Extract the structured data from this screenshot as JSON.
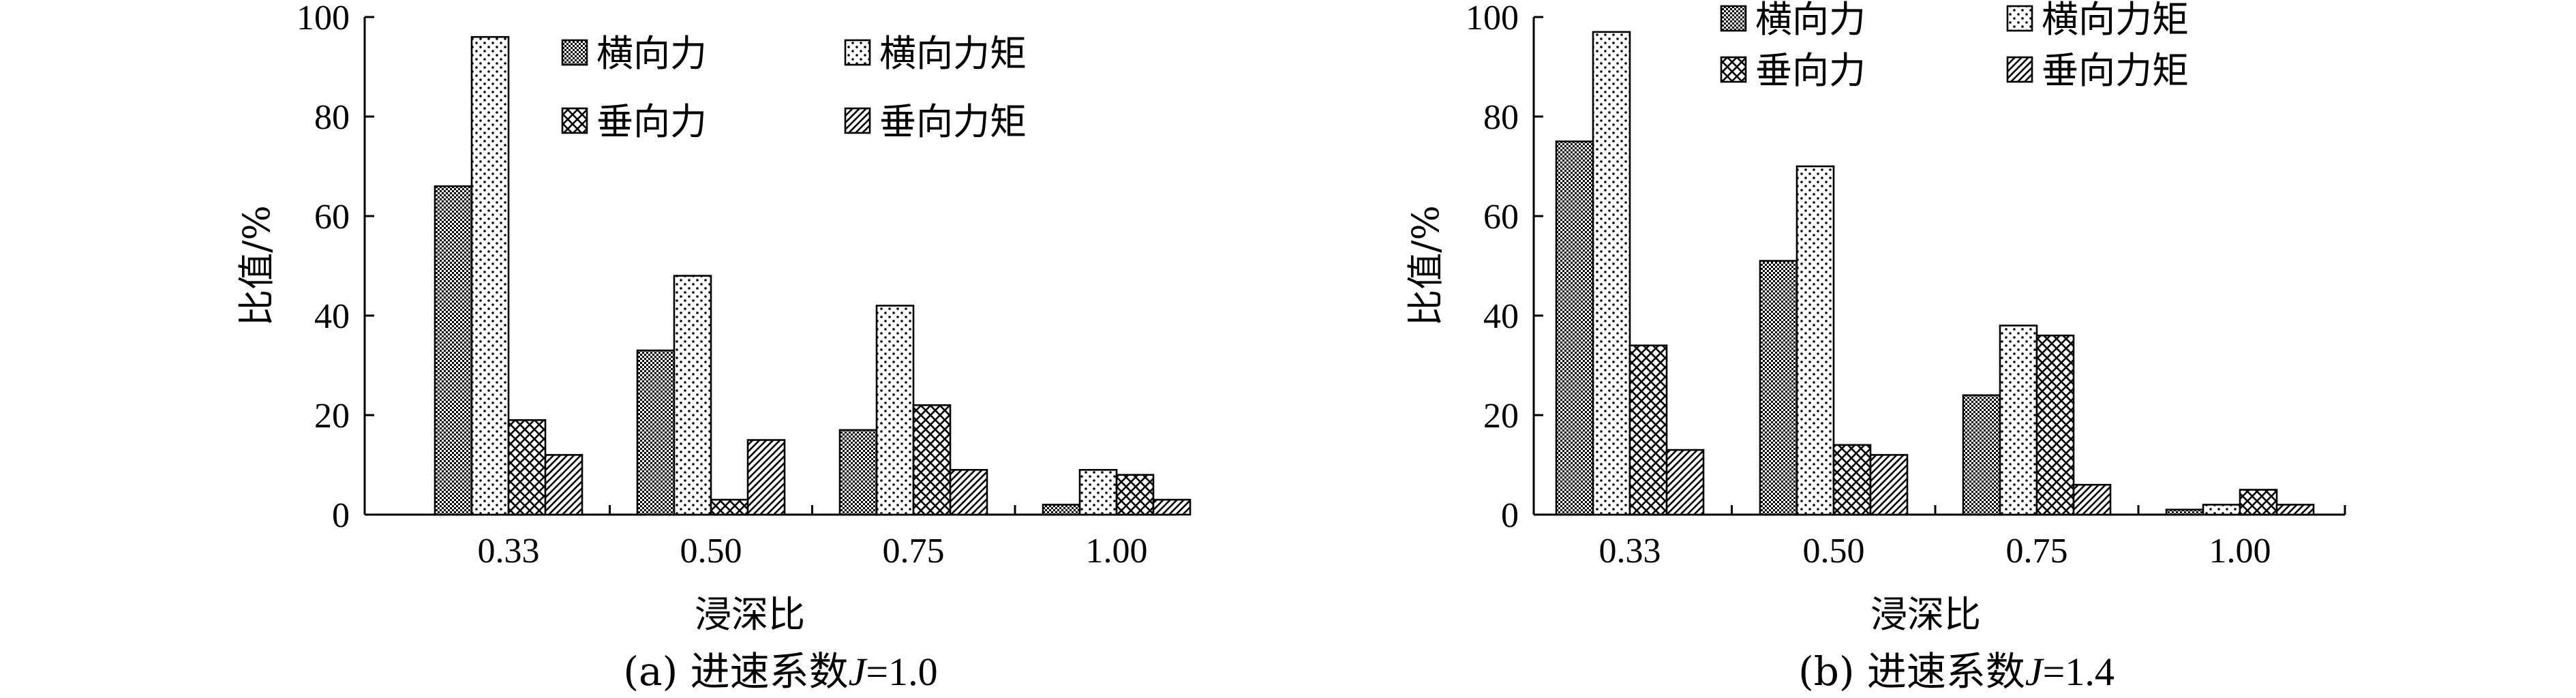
{
  "chart_data": [
    {
      "type": "bar",
      "caption_prefix": "(a) 进速系数",
      "caption_var": "J",
      "caption_suffix": "=1.0",
      "xlabel": "浸深比",
      "ylabel": "比值/%",
      "ylim": [
        0,
        100
      ],
      "yticks": [
        "0",
        "20",
        "40",
        "60",
        "80",
        "100"
      ],
      "categories": [
        "0.33",
        "0.50",
        "0.75",
        "1.00"
      ],
      "legend_placement": "top-right, 2 columns",
      "series": [
        {
          "name": "横向力",
          "values": [
            66,
            33,
            17,
            2
          ],
          "pattern": "dense-dots"
        },
        {
          "name": "横向力矩",
          "values": [
            96,
            48,
            42,
            9
          ],
          "pattern": "sparse-dots"
        },
        {
          "name": "垂向力",
          "values": [
            19,
            3,
            22,
            8
          ],
          "pattern": "crosshatch"
        },
        {
          "name": "垂向力矩",
          "values": [
            12,
            15,
            9,
            3
          ],
          "pattern": "diagonal"
        }
      ]
    },
    {
      "type": "bar",
      "caption_prefix": "(b) 进速系数",
      "caption_var": "J",
      "caption_suffix": "=1.4",
      "xlabel": "浸深比",
      "ylabel": "比值/%",
      "ylim": [
        0,
        100
      ],
      "yticks": [
        "0",
        "20",
        "40",
        "60",
        "80",
        "100"
      ],
      "categories": [
        "0.33",
        "0.50",
        "0.75",
        "1.00"
      ],
      "legend_placement": "top-right, 2 columns",
      "series": [
        {
          "name": "横向力",
          "values": [
            75,
            51,
            24,
            1
          ],
          "pattern": "dense-dots"
        },
        {
          "name": "横向力矩",
          "values": [
            97,
            70,
            38,
            2
          ],
          "pattern": "sparse-dots"
        },
        {
          "name": "垂向力",
          "values": [
            34,
            14,
            36,
            5
          ],
          "pattern": "crosshatch"
        },
        {
          "name": "垂向力矩",
          "values": [
            13,
            12,
            6,
            2
          ],
          "pattern": "diagonal"
        }
      ]
    }
  ]
}
